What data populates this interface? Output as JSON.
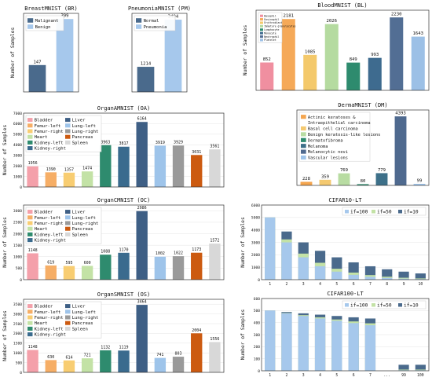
{
  "chart_data": [
    {
      "id": "breast",
      "type": "bar",
      "title": "BreastMNIST (BR)",
      "ylabel": "Number of Samples",
      "categories": [
        "Malignant",
        "Benign"
      ],
      "values": [
        147,
        399
      ],
      "ylim": [
        0,
        430
      ],
      "yticks": [],
      "colors": [
        "#4a6a8c",
        "#a6c8ec"
      ],
      "legend": [
        "Malignant",
        "Benign"
      ],
      "legend_placement": "top-left",
      "grid": false
    },
    {
      "id": "pneumonia",
      "type": "bar",
      "title": "PneumoniaMNIST (PM)",
      "ylabel": "",
      "categories": [
        "Normal",
        "Pneumonia"
      ],
      "values": [
        1214,
        3494
      ],
      "ylim": [
        0,
        3800
      ],
      "yticks": [],
      "colors": [
        "#4a6a8c",
        "#a6c8ec"
      ],
      "legend": [
        "Normal",
        "Pneumonia"
      ],
      "legend_placement": "top-left",
      "grid": false
    },
    {
      "id": "blood",
      "type": "bar",
      "title": "BloodMNIST (BL)",
      "ylabel": "Number of Samples",
      "categories": [
        "Basophil",
        "Eosinophil",
        "Erythroblast",
        "Immature granulocytes",
        "Lymphocyte",
        "Monocyte",
        "Neutrophil",
        "Platelet"
      ],
      "values": [
        852,
        2181,
        1085,
        2026,
        849,
        993,
        2230,
        1643
      ],
      "ylim": [
        0,
        2450
      ],
      "yticks": [],
      "colors": [
        "#f08fa0",
        "#f5a958",
        "#f4c96b",
        "#b5dba0",
        "#2e8b6e",
        "#3e6b8f",
        "#526e94",
        "#9cc0e6"
      ],
      "legend": [
        "Basophil",
        "Eosinophil",
        "Erythroblast",
        "Immature granulocytes",
        "Lymphocyte",
        "Monocyte",
        "Neutrophil",
        "Platelet"
      ],
      "legend_placement": "top-left",
      "grid": false
    },
    {
      "id": "organa",
      "type": "bar",
      "title": "OrganAMNIST (OA)",
      "ylabel": "Number of Samples",
      "categories": [
        "Bladder",
        "Femur-left",
        "Femur-right",
        "Heart",
        "Kidney-left",
        "Kidney-right",
        "Liver",
        "Lung-left",
        "Lung-right",
        "Pancreas",
        "Spleen"
      ],
      "values": [
        1956,
        1390,
        1357,
        1474,
        3963,
        3817,
        6164,
        3919,
        3929,
        3031,
        3561
      ],
      "ylim": [
        0,
        7000
      ],
      "yticks": [
        0,
        1000,
        2000,
        3000,
        4000,
        5000,
        6000,
        7000
      ],
      "colors": [
        "#f4a0aa",
        "#f6ae66",
        "#f8cd72",
        "#c3e2a6",
        "#2e8b6e",
        "#3a6b8e",
        "#3e5f85",
        "#9ec4ea",
        "#9a9a9a",
        "#cc5a10",
        "#d8d8d8"
      ],
      "legend": [
        "Bladder",
        "Femur-left",
        "Femur-right",
        "Heart",
        "Kidney-left",
        "Kidney-right",
        "Liver",
        "Lung-left",
        "Lung-right",
        "Pancreas",
        "Spleen"
      ],
      "legend_placement": "top-left",
      "grid": true
    },
    {
      "id": "derma",
      "type": "bar",
      "title": "DermaMNIST (DM)",
      "ylabel": "",
      "categories": [
        "Actinic keratoses & Intraepithelial carcinoma",
        "Basal cell carcinoma",
        "Benign keratosis-like lesions",
        "Dermatofibroma",
        "Melanoma",
        "Melanocytic nevi",
        "Vascular lesions"
      ],
      "values": [
        228,
        359,
        769,
        80,
        779,
        4393,
        99
      ],
      "ylim": [
        0,
        4800
      ],
      "yticks": [],
      "colors": [
        "#f4a54e",
        "#f4c970",
        "#b8dca2",
        "#2e8b6e",
        "#3d7089",
        "#4f6a8f",
        "#9ec4ea"
      ],
      "legend": [
        "Actinic keratoses &",
        "Intraepithelial carcinoma",
        "Basal cell carcinoma",
        "Benign keratosis-like lesions",
        "Dermatofibroma",
        "Melanoma",
        "Melanocytic nevi",
        "Vascular lesions"
      ],
      "legend_placement": "top-left",
      "grid": false
    },
    {
      "id": "organc",
      "type": "bar",
      "title": "OrganCMNIST (OC)",
      "ylabel": "Number of Samples",
      "categories": [
        "Bladder",
        "Femur-left",
        "Femur-right",
        "Heart",
        "Kidney-left",
        "Kidney-right",
        "Liver",
        "Lung-left",
        "Lung-right",
        "Pancreas",
        "Spleen"
      ],
      "values": [
        1148,
        619,
        595,
        600,
        1088,
        1170,
        2986,
        1002,
        1022,
        1173,
        1572
      ],
      "ylim": [
        0,
        3250
      ],
      "yticks": [
        0,
        500,
        1000,
        1500,
        2000,
        2500,
        3000
      ],
      "colors": [
        "#f4a0aa",
        "#f6ae66",
        "#f8cd72",
        "#c3e2a6",
        "#2e8b6e",
        "#3a6b8e",
        "#3e5f85",
        "#9ec4ea",
        "#9a9a9a",
        "#cc5a10",
        "#d8d8d8"
      ],
      "legend": [
        "Bladder",
        "Femur-left",
        "Femur-right",
        "Heart",
        "Kidney-left",
        "Kidney-right",
        "Liver",
        "Lung-left",
        "Lung-right",
        "Pancreas",
        "Spleen"
      ],
      "legend_placement": "top-left",
      "grid": true
    },
    {
      "id": "organs",
      "type": "bar",
      "title": "OrganSMNIST (OS)",
      "ylabel": "Number of Samples",
      "categories": [
        "Bladder",
        "Femur-left",
        "Femur-right",
        "Heart",
        "Kidney-left",
        "Kidney-right",
        "Liver",
        "Lung-left",
        "Lung-right",
        "Pancreas",
        "Spleen"
      ],
      "values": [
        1148,
        630,
        614,
        721,
        1132,
        1119,
        3464,
        741,
        803,
        2004,
        1556
      ],
      "ylim": [
        0,
        3750
      ],
      "yticks": [
        0,
        500,
        1000,
        1500,
        2000,
        2500,
        3000,
        3500
      ],
      "colors": [
        "#f4a0aa",
        "#f6ae66",
        "#f8cd72",
        "#c3e2a6",
        "#2e8b6e",
        "#3a6b8e",
        "#3e5f85",
        "#9ec4ea",
        "#9a9a9a",
        "#cc5a10",
        "#d8d8d8"
      ],
      "legend": [
        "Bladder",
        "Femur-left",
        "Femur-right",
        "Heart",
        "Kidney-left",
        "Kidney-right",
        "Liver",
        "Lung-left",
        "Lung-right",
        "Pancreas",
        "Spleen"
      ],
      "legend_placement": "top-left",
      "grid": true
    },
    {
      "id": "cifar10",
      "type": "bar",
      "title": "CIFAR10-LT",
      "ylabel": "Number of Samples",
      "categories": [
        "1",
        "2",
        "3",
        "4",
        "5",
        "6",
        "7",
        "8",
        "9",
        "10"
      ],
      "ylim": [
        0,
        6000
      ],
      "yticks": [
        0,
        1000,
        2000,
        3000,
        4000,
        5000,
        6000
      ],
      "series": [
        {
          "name": "if=100",
          "values": [
            5000,
            2997,
            1796,
            1077,
            645,
            387,
            232,
            139,
            83,
            50
          ],
          "color": "#a6c8ec"
        },
        {
          "name": "if=50",
          "values": [
            5000,
            3237,
            2096,
            1357,
            878,
            568,
            368,
            238,
            154,
            100
          ],
          "color": "#c3e2a6"
        },
        {
          "name": "if=10",
          "values": [
            5000,
            3871,
            2997,
            2320,
            1796,
            1391,
            1077,
            834,
            645,
            500
          ],
          "color": "#4a6a8c"
        }
      ],
      "legend_placement": "top-right",
      "grid": true
    },
    {
      "id": "cifar100",
      "type": "bar",
      "title": "CIFAR100-LT",
      "ylabel": "Number of Samples",
      "categories": [
        "1",
        "2",
        "3",
        "4",
        "5",
        "6",
        "7",
        "...",
        "99",
        "100"
      ],
      "ylim": [
        0,
        600
      ],
      "yticks": [
        0,
        100,
        200,
        300,
        400,
        500,
        600
      ],
      "series": [
        {
          "name": "if=100",
          "values": [
            500,
            477,
            455,
            434,
            415,
            396,
            378,
            0,
            5,
            5
          ],
          "color": "#a6c8ec"
        },
        {
          "name": "if=50",
          "values": [
            500,
            480,
            462,
            444,
            426,
            410,
            394,
            0,
            10,
            10
          ],
          "color": "#c3e2a6"
        },
        {
          "name": "if=10",
          "values": [
            500,
            488,
            477,
            466,
            455,
            444,
            434,
            0,
            50,
            50
          ],
          "color": "#4a6a8c"
        }
      ],
      "legend_placement": "top-right",
      "grid": true
    }
  ]
}
